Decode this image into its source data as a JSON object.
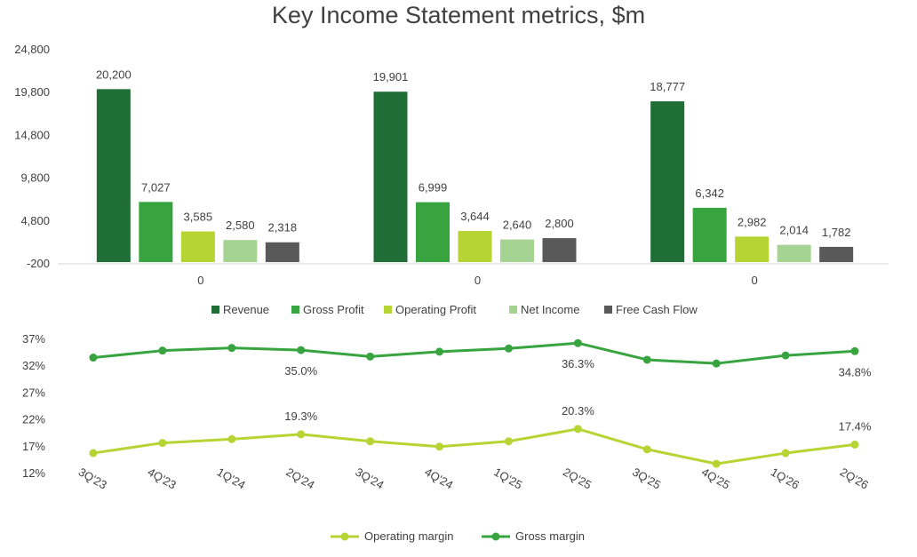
{
  "chart_data": [
    {
      "type": "bar",
      "title": "Key Income Statement metrics, $m",
      "categories": [
        "0",
        "0",
        "0"
      ],
      "series": [
        {
          "name": "Revenue",
          "color": "#1e6e35",
          "values": [
            20200,
            19901,
            18777
          ],
          "labels": [
            "20,200",
            "19,901",
            "18,777"
          ]
        },
        {
          "name": "Gross Profit",
          "color": "#37a43f",
          "values": [
            7027,
            6999,
            6342
          ],
          "labels": [
            "7,027",
            "6,999",
            "6,342"
          ]
        },
        {
          "name": "Operating Profit",
          "color": "#b6d434",
          "values": [
            3585,
            3644,
            2982
          ],
          "labels": [
            "3,585",
            "3,644",
            "2,982"
          ]
        },
        {
          "name": "Net Income",
          "color": "#a5d391",
          "values": [
            2580,
            2640,
            2014
          ],
          "labels": [
            "2,580",
            "2,640",
            "2,014"
          ]
        },
        {
          "name": "Free Cash Flow",
          "color": "#595959",
          "values": [
            2318,
            2800,
            1782
          ],
          "labels": [
            "2,318",
            "2,800",
            "1,782"
          ]
        }
      ],
      "ylim": [
        -200,
        24800
      ],
      "yticks": [
        -200,
        4800,
        9800,
        14800,
        19800,
        24800
      ],
      "ytick_labels": [
        "-200",
        "4,800",
        "9,800",
        "14,800",
        "19,800",
        "24,800"
      ],
      "grid": false,
      "legend": "bottom"
    },
    {
      "type": "line",
      "categories": [
        "3Q'23",
        "4Q'23",
        "1Q'24",
        "2Q'24",
        "3Q'24",
        "4Q'24",
        "1Q'25",
        "2Q'25",
        "3Q'25",
        "4Q'25",
        "1Q'26",
        "2Q'26"
      ],
      "series": [
        {
          "name": "Operating margin",
          "color": "#b6d434",
          "values": [
            15.8,
            17.7,
            18.4,
            19.3,
            18.0,
            17.0,
            18.0,
            20.3,
            16.5,
            13.8,
            15.8,
            17.4
          ],
          "point_labels": {
            "3": "19.3%",
            "7": "20.3%",
            "11": "17.4%"
          }
        },
        {
          "name": "Gross margin",
          "color": "#37a43f",
          "values": [
            33.6,
            34.9,
            35.4,
            35.0,
            33.8,
            34.7,
            35.3,
            36.3,
            33.2,
            32.5,
            34.0,
            34.8
          ],
          "point_labels": {
            "3": "35.0%",
            "7": "36.3%",
            "11": "34.8%"
          }
        }
      ],
      "ylim": [
        12,
        37
      ],
      "yticks": [
        12,
        17,
        22,
        27,
        32,
        37
      ],
      "ytick_labels": [
        "12%",
        "17%",
        "22%",
        "27%",
        "32%",
        "37%"
      ],
      "grid": false,
      "legend": "bottom"
    }
  ]
}
